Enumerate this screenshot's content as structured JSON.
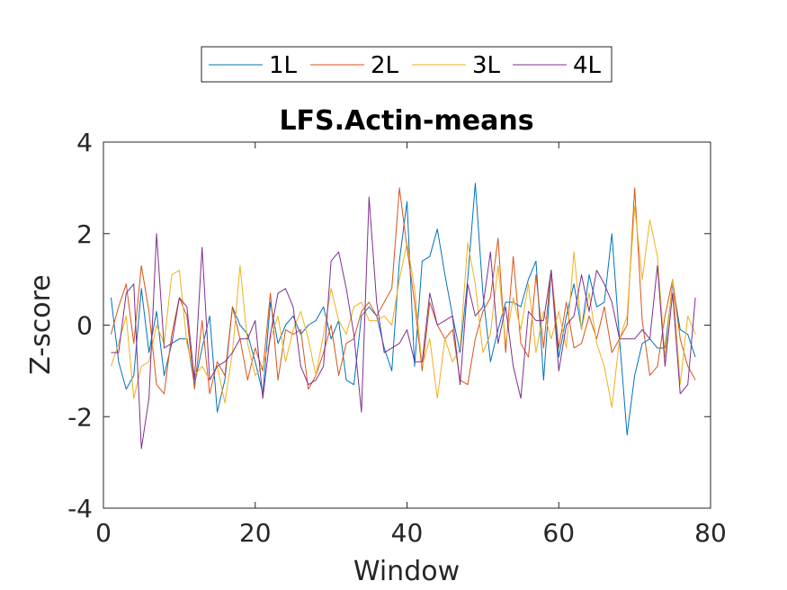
{
  "chart_data": {
    "type": "line",
    "title": "LFS.Actin-means",
    "xlabel": "Window",
    "ylabel": "Z-score",
    "xlim": [
      0,
      80
    ],
    "ylim": [
      -4,
      4
    ],
    "xticks": [
      "0",
      "20",
      "40",
      "60",
      "80"
    ],
    "yticks": [
      "-4",
      "-2",
      "0",
      "2",
      "4"
    ],
    "grid": false,
    "legend_position": "top-center",
    "x": [
      1,
      2,
      3,
      4,
      5,
      6,
      7,
      8,
      9,
      10,
      11,
      12,
      13,
      14,
      15,
      16,
      17,
      18,
      19,
      20,
      21,
      22,
      23,
      24,
      25,
      26,
      27,
      28,
      29,
      30,
      31,
      32,
      33,
      34,
      35,
      36,
      37,
      38,
      39,
      40,
      41,
      42,
      43,
      44,
      45,
      46,
      47,
      48,
      49,
      50,
      51,
      52,
      53,
      54,
      55,
      56,
      57,
      58,
      59,
      60,
      61,
      62,
      63,
      64,
      65,
      66,
      67,
      68,
      69,
      70,
      71,
      72,
      73,
      74,
      75,
      76,
      77,
      78
    ],
    "series": [
      {
        "name": "1L",
        "color": "#0072BD",
        "values": [
          0.6,
          -0.8,
          -1.4,
          -1.1,
          0.8,
          -0.6,
          0.3,
          -1.1,
          -0.4,
          -0.3,
          -0.3,
          -1.3,
          -0.5,
          0.2,
          -1.9,
          -1.2,
          0.4,
          0.0,
          -0.2,
          -0.8,
          -1.5,
          0.5,
          -0.4,
          0.0,
          0.2,
          -0.2,
          0.0,
          0.1,
          0.4,
          -0.3,
          0.1,
          -1.2,
          -1.3,
          0.2,
          0.4,
          0.2,
          -0.5,
          -1.0,
          1.4,
          2.7,
          -0.9,
          1.4,
          1.5,
          2.1,
          1.1,
          0.2,
          -0.6,
          1.0,
          3.1,
          0.7,
          -0.8,
          -0.1,
          0.5,
          0.5,
          0.4,
          1.0,
          1.4,
          -1.2,
          1.2,
          -0.7,
          0.2,
          0.9,
          -0.1,
          1.1,
          0.4,
          0.5,
          2.0,
          -0.3,
          -2.4,
          -1.1,
          -0.4,
          -0.3,
          -0.5,
          -0.5,
          0.9,
          -0.1,
          -0.2,
          -0.7
        ]
      },
      {
        "name": "2L",
        "color": "#D95319",
        "values": [
          -0.2,
          0.4,
          0.9,
          -0.4,
          1.3,
          0.3,
          -1.3,
          -1.5,
          -0.2,
          0.6,
          0.2,
          -1.4,
          0.1,
          -1.5,
          -0.8,
          -1.1,
          0.4,
          -0.3,
          -1.2,
          -0.5,
          -1.0,
          0.7,
          -1.2,
          -0.1,
          -0.2,
          -0.1,
          -1.4,
          -1.1,
          -0.6,
          0.0,
          -1.1,
          -0.4,
          -0.3,
          0.3,
          0.5,
          0.2,
          0.5,
          0.8,
          3.0,
          1.7,
          0.5,
          -1.0,
          0.5,
          0.0,
          -0.3,
          -0.1,
          -1.2,
          -1.3,
          -0.3,
          0.3,
          0.6,
          1.9,
          -0.6,
          1.5,
          -0.4,
          -0.7,
          1.1,
          -0.5,
          1.2,
          -0.5,
          0.5,
          -0.5,
          -0.4,
          0.2,
          -0.3,
          0.4,
          -0.6,
          -0.3,
          0.0,
          3.0,
          0.1,
          -1.1,
          -0.9,
          0.2,
          1.0,
          -0.3,
          -0.9,
          -1.2
        ]
      },
      {
        "name": "3L",
        "color": "#EDB120",
        "values": [
          -0.9,
          -0.4,
          0.2,
          -1.6,
          -0.9,
          -0.8,
          0.0,
          -0.4,
          1.1,
          1.2,
          -0.4,
          -1.1,
          -0.9,
          -1.2,
          -0.9,
          -1.7,
          -0.6,
          1.3,
          -0.4,
          -1.1,
          -0.9,
          -0.3,
          0.2,
          -0.8,
          -0.1,
          0.3,
          -0.3,
          -1.1,
          -0.2,
          0.8,
          0.1,
          -0.2,
          0.4,
          0.5,
          0.1,
          0.1,
          0.2,
          0.0,
          1.0,
          1.8,
          0.8,
          -0.9,
          -0.3,
          -1.6,
          -0.3,
          -0.8,
          -0.5,
          1.8,
          0.9,
          -0.6,
          -0.2,
          1.3,
          -0.4,
          0.6,
          -0.1,
          0.9,
          -0.6,
          0.3,
          -0.3,
          0.3,
          -0.5,
          1.6,
          -0.1,
          0.7,
          -0.4,
          -0.9,
          -1.8,
          -0.3,
          0.2,
          2.6,
          1.0,
          2.3,
          1.5,
          -0.7,
          1.0,
          -1.3,
          0.2,
          -0.2
        ]
      },
      {
        "name": "4L",
        "color": "#7E2F8E",
        "values": [
          -0.6,
          -0.6,
          0.7,
          0.9,
          -2.7,
          -1.6,
          2.0,
          -0.5,
          -0.4,
          0.6,
          0.4,
          -1.2,
          1.7,
          -1.2,
          -0.9,
          -0.8,
          -0.6,
          -0.3,
          -0.3,
          0.1,
          -1.6,
          -0.2,
          0.7,
          0.8,
          0.4,
          -0.9,
          -1.3,
          -1.2,
          -0.9,
          1.4,
          1.6,
          0.8,
          -0.2,
          -1.9,
          2.8,
          0.5,
          -0.6,
          -0.5,
          -0.4,
          -0.1,
          -0.8,
          -0.8,
          0.7,
          0.0,
          0.1,
          0.2,
          -1.3,
          0.9,
          0.2,
          0.4,
          1.6,
          -0.4,
          0.4,
          -0.9,
          -1.6,
          0.3,
          0.1,
          0.1,
          1.2,
          -1.0,
          0.0,
          0.2,
          1.1,
          0.3,
          1.2,
          0.9,
          0.5,
          -0.3,
          -0.3,
          -0.3,
          -0.1,
          -0.3,
          1.3,
          -0.9,
          0.7,
          -1.5,
          -1.3,
          0.6
        ]
      }
    ]
  }
}
